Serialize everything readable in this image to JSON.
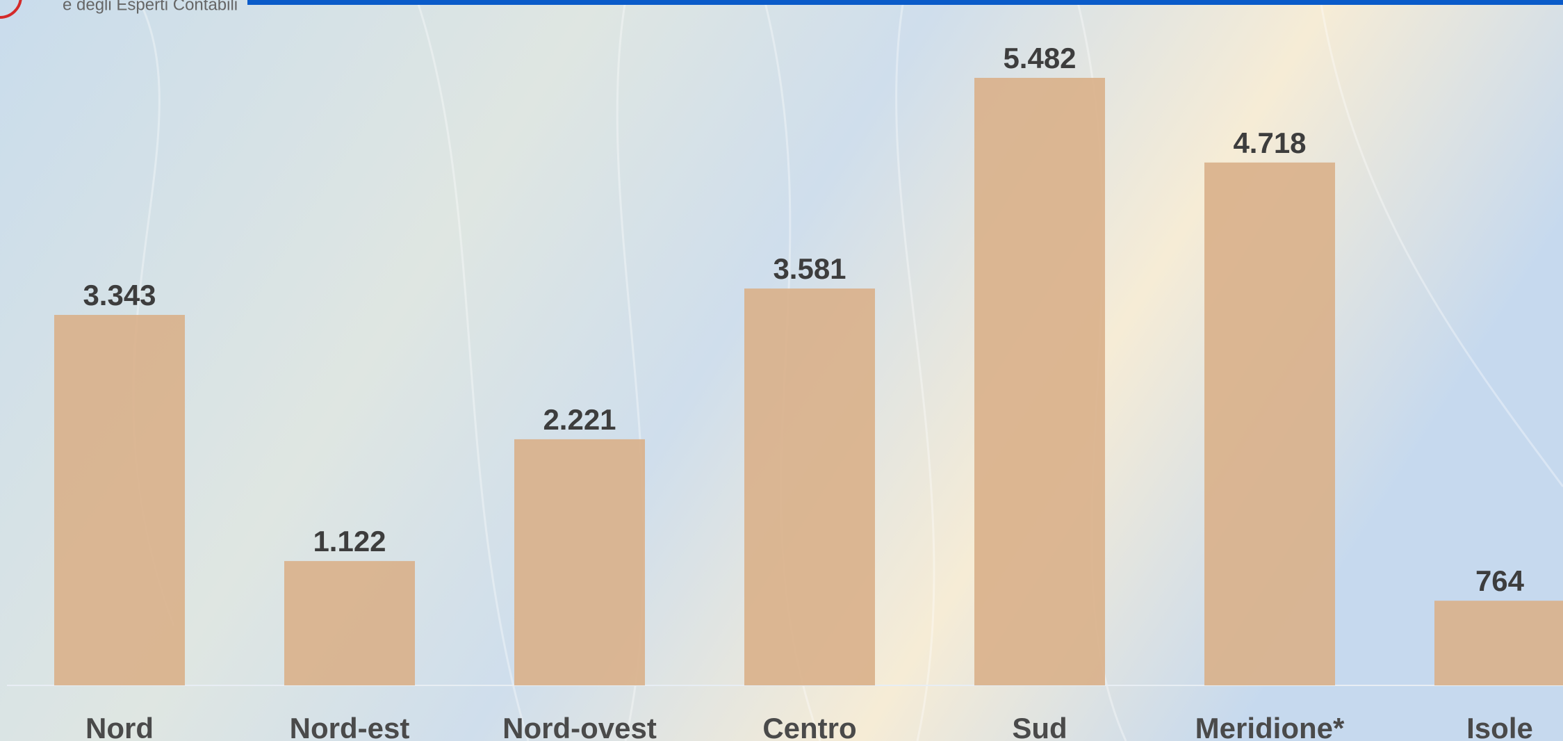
{
  "header": {
    "logo_text": "e degli Esperti Contabili"
  },
  "chart_data": {
    "type": "bar",
    "categories": [
      "Nord",
      "Nord-est",
      "Nord-ovest",
      "Centro",
      "Sud",
      "Meridione*",
      "Isole"
    ],
    "values": [
      3343,
      1122,
      2221,
      3581,
      5482,
      4718,
      764
    ],
    "value_labels": [
      "3.343",
      "1.122",
      "2.221",
      "3.581",
      "5.482",
      "4.718",
      "764"
    ],
    "color": "#d9b08a"
  }
}
